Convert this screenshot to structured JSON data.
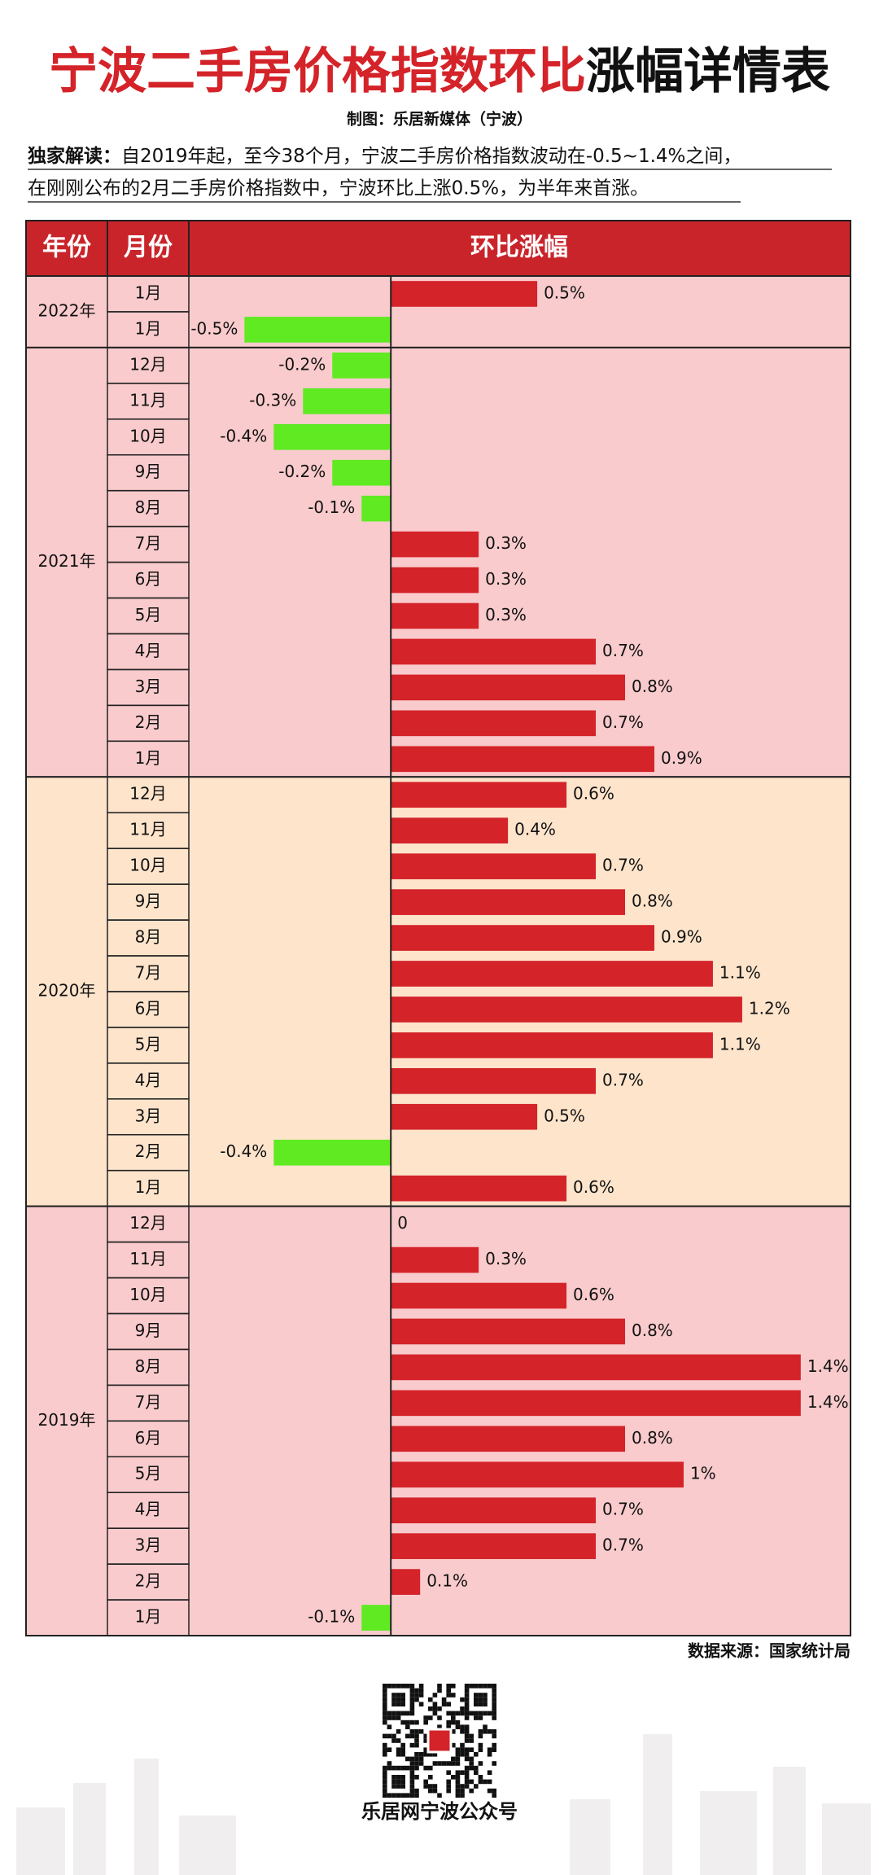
{
  "chart_data": {
    "type": "bar",
    "title": [
      "宁波二手房价格指数环比",
      "涨幅详情表"
    ],
    "subtitle": "制图：乐居新媒体（宁波）",
    "note_label": "独家解读：",
    "note": [
      "自2019年起，至今38个月，宁波二手房价格指数波动在-0.5~1.4%之间，",
      "在刚刚公布的2月二手房价格指数中，宁波环比上涨0.5%，为半年来首涨。"
    ],
    "headers": [
      "年份",
      "月份",
      "环比涨幅"
    ],
    "positive_color": "#d42329",
    "negative_color": "#5fea22",
    "xlim": [
      -0.69,
      1.57
    ],
    "groups": [
      {
        "year": "2022年",
        "background": "#f9cbcd",
        "categories": [
          "1月",
          "1月"
        ],
        "values": [
          0.5,
          -0.5
        ],
        "value_labels": [
          "0.5%",
          "-0.5%"
        ]
      },
      {
        "year": "2021年",
        "background": "#f9cbcd",
        "categories": [
          "12月",
          "11月",
          "10月",
          "9月",
          "8月",
          "7月",
          "6月",
          "5月",
          "4月",
          "3月",
          "2月",
          "1月"
        ],
        "values": [
          -0.2,
          -0.3,
          -0.4,
          -0.2,
          -0.1,
          0.3,
          0.3,
          0.3,
          0.7,
          0.8,
          0.7,
          0.9
        ],
        "value_labels": [
          "-0.2%",
          "-0.3%",
          "-0.4%",
          "-0.2%",
          "-0.1%",
          "0.3%",
          "0.3%",
          "0.3%",
          "0.7%",
          "0.8%",
          "0.7%",
          "0.9%"
        ]
      },
      {
        "year": "2020年",
        "background": "#fde4cb",
        "categories": [
          "12月",
          "11月",
          "10月",
          "9月",
          "8月",
          "7月",
          "6月",
          "5月",
          "4月",
          "3月",
          "2月",
          "1月"
        ],
        "values": [
          0.6,
          0.4,
          0.7,
          0.8,
          0.9,
          1.1,
          1.2,
          1.1,
          0.7,
          0.5,
          -0.4,
          0.6
        ],
        "value_labels": [
          "0.6%",
          "0.4%",
          "0.7%",
          "0.8%",
          "0.9%",
          "1.1%",
          "1.2%",
          "1.1%",
          "0.7%",
          "0.5%",
          "-0.4%",
          "0.6%"
        ]
      },
      {
        "year": "2019年",
        "background": "#f9cbcd",
        "categories": [
          "12月",
          "11月",
          "10月",
          "9月",
          "8月",
          "7月",
          "6月",
          "5月",
          "4月",
          "3月",
          "2月",
          "1月"
        ],
        "values": [
          0,
          0.3,
          0.6,
          0.8,
          1.4,
          1.4,
          0.8,
          1,
          0.7,
          0.7,
          0.1,
          -0.1
        ],
        "value_labels": [
          "0",
          "0.3%",
          "0.6%",
          "0.8%",
          "1.4%",
          "1.4%",
          "0.8%",
          "1%",
          "0.7%",
          "0.7%",
          "0.1%",
          "-0.1%"
        ]
      }
    ],
    "source": "数据来源：国家统计局",
    "footer": "乐居网宁波公众号"
  }
}
